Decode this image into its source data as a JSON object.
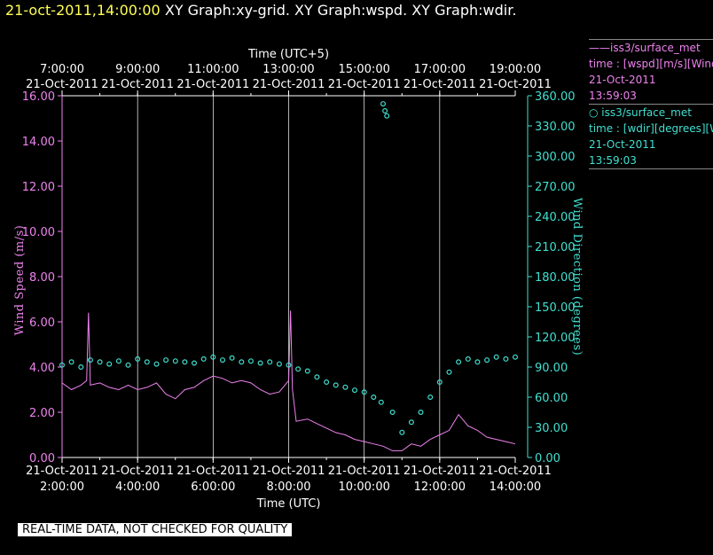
{
  "header": {
    "timestamp": "21-oct-2011,14:00:00",
    "graphs": "XY Graph:xy-grid.  XY Graph:wspd.  XY Graph:wdir."
  },
  "footer": {
    "notice": "REAL-TIME DATA, NOT CHECKED FOR QUALITY"
  },
  "legend": {
    "items": [
      {
        "lines": [
          "——iss3/surface_met",
          "time : [wspd][m/s][Wind",
          "21-Oct-2011",
          "13:59:03"
        ]
      },
      {
        "lines": [
          "○  iss3/surface_met",
          "time : [wdir][degrees][Wind",
          "21-Oct-2011",
          "13:59:03"
        ]
      }
    ]
  },
  "colors": {
    "wspd": "#ee82ee",
    "wdir": "#40e0d0",
    "grid": "#ffffff",
    "background": "#000000"
  },
  "chart_data": {
    "type": "line",
    "xlabel_bottom": "Time (UTC)",
    "xlabel_top": "Time (UTC+5)",
    "x_ticks_bottom": [
      {
        "date": "21-Oct-2011",
        "time": "2:00:00"
      },
      {
        "date": "21-Oct-2011",
        "time": "4:00:00"
      },
      {
        "date": "21-Oct-2011",
        "time": "6:00:00"
      },
      {
        "date": "21-Oct-2011",
        "time": "8:00:00"
      },
      {
        "date": "21-Oct-2011",
        "time": "10:00:00"
      },
      {
        "date": "21-Oct-2011",
        "time": "12:00:00"
      },
      {
        "date": "21-Oct-2011",
        "time": "14:00:00"
      }
    ],
    "x_ticks_top": [
      {
        "time": "7:00:00",
        "date": "21-Oct-2011"
      },
      {
        "time": "9:00:00",
        "date": "21-Oct-2011"
      },
      {
        "time": "11:00:00",
        "date": "21-Oct-2011"
      },
      {
        "time": "13:00:00",
        "date": "21-Oct-2011"
      },
      {
        "time": "15:00:00",
        "date": "21-Oct-2011"
      },
      {
        "time": "17:00:00",
        "date": "21-Oct-2011"
      },
      {
        "time": "19:00:00",
        "date": "21-Oct-2011"
      }
    ],
    "xlim_utc_hours": [
      2.0,
      14.0
    ],
    "grid_x": true,
    "y_left": {
      "label": "Wind Speed (m/s)",
      "range": [
        0,
        16
      ],
      "ticks": [
        "0.00",
        "2.00",
        "4.00",
        "6.00",
        "8.00",
        "10.00",
        "12.00",
        "14.00",
        "16.00"
      ]
    },
    "y_right": {
      "label": "Wind Direction (degrees)",
      "range": [
        0,
        360
      ],
      "ticks": [
        "0.00",
        "30.00",
        "60.00",
        "90.00",
        "120.00",
        "150.00",
        "180.00",
        "210.00",
        "240.00",
        "270.00",
        "300.00",
        "330.00",
        "360.00"
      ]
    },
    "series": [
      {
        "name": "iss3/surface_met",
        "variable": "wspd",
        "style": "line",
        "x": [
          2.0,
          2.25,
          2.5,
          2.65,
          2.7,
          2.75,
          3.0,
          3.25,
          3.5,
          3.75,
          4.0,
          4.25,
          4.5,
          4.75,
          5.0,
          5.25,
          5.5,
          5.75,
          6.0,
          6.25,
          6.5,
          6.75,
          7.0,
          7.25,
          7.5,
          7.75,
          8.0,
          8.05,
          8.1,
          8.2,
          8.5,
          8.75,
          9.0,
          9.25,
          9.5,
          9.75,
          10.0,
          10.25,
          10.5,
          10.75,
          11.0,
          11.25,
          11.5,
          11.75,
          12.0,
          12.25,
          12.5,
          12.75,
          13.0,
          13.25,
          13.5,
          13.75,
          14.0
        ],
        "y": [
          3.3,
          3.0,
          3.2,
          3.4,
          6.4,
          3.2,
          3.3,
          3.1,
          3.0,
          3.2,
          3.0,
          3.1,
          3.3,
          2.8,
          2.6,
          3.0,
          3.1,
          3.4,
          3.6,
          3.5,
          3.3,
          3.4,
          3.3,
          3.0,
          2.8,
          2.9,
          3.4,
          6.5,
          3.0,
          1.6,
          1.7,
          1.5,
          1.3,
          1.1,
          1.0,
          0.8,
          0.7,
          0.6,
          0.5,
          0.3,
          0.3,
          0.6,
          0.5,
          0.8,
          1.0,
          1.2,
          1.9,
          1.4,
          1.2,
          0.9,
          0.8,
          0.7,
          0.6
        ]
      },
      {
        "name": "iss3/surface_met",
        "variable": "wdir",
        "style": "scatter-open-circles",
        "x": [
          2.0,
          2.25,
          2.5,
          2.75,
          3.0,
          3.25,
          3.5,
          3.75,
          4.0,
          4.25,
          4.5,
          4.75,
          5.0,
          5.25,
          5.5,
          5.75,
          6.0,
          6.25,
          6.5,
          6.75,
          7.0,
          7.25,
          7.5,
          7.75,
          8.0,
          8.25,
          8.5,
          8.75,
          9.0,
          9.25,
          9.5,
          9.75,
          10.0,
          10.25,
          10.45,
          10.5,
          10.55,
          10.6,
          10.75,
          11.0,
          11.25,
          11.5,
          11.75,
          12.0,
          12.25,
          12.5,
          12.75,
          13.0,
          13.25,
          13.5,
          13.75,
          14.0
        ],
        "y": [
          92,
          95,
          90,
          97,
          95,
          93,
          96,
          92,
          98,
          95,
          93,
          97,
          96,
          95,
          94,
          98,
          100,
          97,
          99,
          95,
          96,
          94,
          95,
          93,
          92,
          88,
          86,
          80,
          75,
          72,
          70,
          67,
          65,
          60,
          55,
          352,
          345,
          340,
          45,
          25,
          35,
          45,
          60,
          75,
          85,
          95,
          98,
          95,
          97,
          100,
          98,
          100
        ]
      }
    ]
  }
}
